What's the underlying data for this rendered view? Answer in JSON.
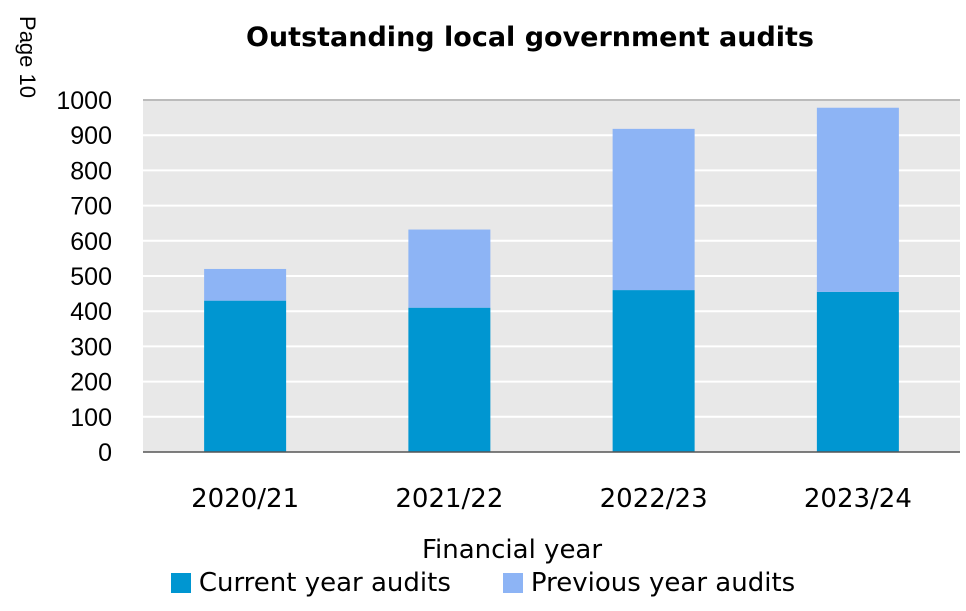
{
  "page_label": "Page 10",
  "chart_data": {
    "type": "bar",
    "stacked": true,
    "title": "Outstanding local government audits",
    "xlabel": "Financial year",
    "ylabel": "",
    "categories": [
      "2020/21",
      "2021/22",
      "2022/23",
      "2023/24"
    ],
    "series": [
      {
        "name": "Current year audits",
        "values": [
          430,
          410,
          460,
          455
        ],
        "color": "#0096d1"
      },
      {
        "name": "Previous year audits",
        "values": [
          90,
          222,
          458,
          523
        ],
        "color": "#8db4f5"
      }
    ],
    "ylim": [
      0,
      1000
    ],
    "yticks": [
      0,
      100,
      200,
      300,
      400,
      500,
      600,
      700,
      800,
      900,
      1000
    ],
    "grid": true,
    "legend_position": "bottom"
  }
}
